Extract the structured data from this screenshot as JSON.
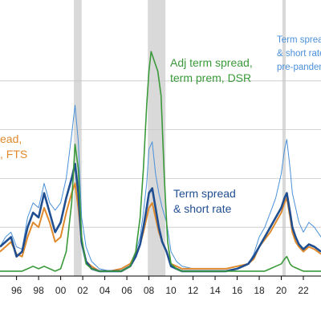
{
  "chart_data": {
    "type": "line",
    "title": "",
    "xlabel": "",
    "ylabel": "",
    "xlim": [
      1994.5,
      2023.6
    ],
    "ylim": [
      0,
      1.0
    ],
    "grid": "horizontal",
    "x_tick_labels": [
      {
        "x": 1996,
        "label": "96"
      },
      {
        "x": 1998,
        "label": "98"
      },
      {
        "x": 2000,
        "label": "00"
      },
      {
        "x": 2002,
        "label": "02"
      },
      {
        "x": 2004,
        "label": "04"
      },
      {
        "x": 2006,
        "label": "06"
      },
      {
        "x": 2008,
        "label": "08"
      },
      {
        "x": 2010,
        "label": "10"
      },
      {
        "x": 2012,
        "label": "12"
      },
      {
        "x": 2014,
        "label": "14"
      },
      {
        "x": 2016,
        "label": "16"
      },
      {
        "x": 2018,
        "label": "18"
      },
      {
        "x": 2020,
        "label": "20"
      },
      {
        "x": 2022,
        "label": "22"
      }
    ],
    "recessions": [
      [
        2001.2,
        2001.9
      ],
      [
        2007.9,
        2009.5
      ],
      [
        2020.1,
        2020.4
      ]
    ],
    "series": [
      {
        "color": "#4a90d9",
        "x": [
          1994.5,
          1995.0,
          1995.5,
          1996.0,
          1996.5,
          1997.0,
          1997.5,
          1998.0,
          1998.5,
          1999.0,
          1999.5,
          2000.0,
          2000.5,
          2001.0,
          2001.3,
          2001.6,
          2001.9,
          2002.3,
          2002.8,
          2003.5,
          2004.5,
          2005.5,
          2006.3,
          2006.8,
          2007.2,
          2007.5,
          2007.8,
          2008.0,
          2008.3,
          2008.6,
          2008.9,
          2009.2,
          2009.6,
          2010.0,
          2010.5,
          2011.0,
          2012.0,
          2013.0,
          2014.0,
          2015.0,
          2016.0,
          2017.0,
          2017.5,
          2018.0,
          2018.5,
          2019.0,
          2019.5,
          2020.0,
          2020.3,
          2020.5,
          2020.8,
          2021.0,
          2021.3,
          2021.6,
          2022.0,
          2022.5,
          2023.0,
          2023.6
        ],
        "values": [
          0.12,
          0.16,
          0.18,
          0.12,
          0.11,
          0.24,
          0.3,
          0.28,
          0.38,
          0.3,
          0.27,
          0.3,
          0.4,
          0.58,
          0.7,
          0.55,
          0.24,
          0.12,
          0.06,
          0.03,
          0.02,
          0.03,
          0.05,
          0.1,
          0.16,
          0.26,
          0.38,
          0.52,
          0.55,
          0.42,
          0.34,
          0.28,
          0.22,
          0.1,
          0.06,
          0.04,
          0.03,
          0.03,
          0.03,
          0.03,
          0.04,
          0.05,
          0.09,
          0.16,
          0.2,
          0.26,
          0.32,
          0.42,
          0.52,
          0.56,
          0.44,
          0.34,
          0.28,
          0.22,
          0.18,
          0.22,
          0.2,
          0.16
        ]
      },
      {
        "color": "#e08a2e",
        "x": [
          1994.5,
          1995.0,
          1995.5,
          1996.0,
          1996.5,
          1997.0,
          1997.5,
          1998.0,
          1998.5,
          1999.0,
          1999.5,
          2000.0,
          2000.5,
          2001.0,
          2001.3,
          2001.6,
          2001.9,
          2002.3,
          2002.8,
          2003.5,
          2004.5,
          2005.5,
          2006.3,
          2006.8,
          2007.2,
          2007.5,
          2007.8,
          2008.0,
          2008.3,
          2008.6,
          2008.9,
          2009.2,
          2009.6,
          2010.0,
          2010.5,
          2011.0,
          2012.0,
          2013.0,
          2014.0,
          2015.0,
          2016.0,
          2017.0,
          2017.5,
          2018.0,
          2018.5,
          2019.0,
          2019.5,
          2020.0,
          2020.3,
          2020.5,
          2020.8,
          2021.0,
          2021.3,
          2021.6,
          2022.0,
          2022.5,
          2023.0,
          2023.6
        ],
        "values": [
          0.1,
          0.12,
          0.14,
          0.09,
          0.08,
          0.16,
          0.22,
          0.2,
          0.28,
          0.22,
          0.14,
          0.16,
          0.26,
          0.34,
          0.38,
          0.28,
          0.14,
          0.06,
          0.04,
          0.02,
          0.02,
          0.03,
          0.05,
          0.09,
          0.13,
          0.18,
          0.24,
          0.28,
          0.3,
          0.24,
          0.18,
          0.14,
          0.1,
          0.05,
          0.04,
          0.03,
          0.03,
          0.03,
          0.03,
          0.03,
          0.04,
          0.05,
          0.07,
          0.12,
          0.15,
          0.18,
          0.22,
          0.26,
          0.3,
          0.32,
          0.24,
          0.18,
          0.14,
          0.12,
          0.1,
          0.12,
          0.11,
          0.09
        ]
      },
      {
        "color": "#1f4e91",
        "x": [
          1994.5,
          1995.0,
          1995.5,
          1996.0,
          1996.5,
          1997.0,
          1997.5,
          1998.0,
          1998.5,
          1999.0,
          1999.5,
          2000.0,
          2000.5,
          2001.0,
          2001.3,
          2001.6,
          2001.9,
          2002.3,
          2002.8,
          2003.5,
          2004.5,
          2005.5,
          2006.3,
          2006.8,
          2007.2,
          2007.5,
          2007.8,
          2008.0,
          2008.3,
          2008.6,
          2008.9,
          2009.2,
          2009.6,
          2010.0,
          2010.5,
          2011.0,
          2012.0,
          2013.0,
          2014.0,
          2015.0,
          2016.0,
          2017.0,
          2017.5,
          2018.0,
          2018.5,
          2019.0,
          2019.5,
          2020.0,
          2020.3,
          2020.5,
          2020.8,
          2021.0,
          2021.3,
          2021.6,
          2022.0,
          2022.5,
          2023.0,
          2023.6
        ],
        "values": [
          0.12,
          0.14,
          0.16,
          0.08,
          0.1,
          0.2,
          0.26,
          0.24,
          0.34,
          0.26,
          0.18,
          0.22,
          0.32,
          0.4,
          0.46,
          0.34,
          0.14,
          0.06,
          0.03,
          0.02,
          0.02,
          0.02,
          0.04,
          0.08,
          0.13,
          0.2,
          0.28,
          0.34,
          0.36,
          0.28,
          0.2,
          0.14,
          0.1,
          0.04,
          0.03,
          0.02,
          0.02,
          0.02,
          0.02,
          0.02,
          0.03,
          0.05,
          0.08,
          0.12,
          0.16,
          0.2,
          0.24,
          0.28,
          0.32,
          0.34,
          0.26,
          0.2,
          0.16,
          0.13,
          0.11,
          0.13,
          0.12,
          0.1
        ]
      },
      {
        "color": "#3a9a3a",
        "x": [
          1994.5,
          1995.0,
          1995.5,
          1996.0,
          1996.5,
          1997.0,
          1997.5,
          1998.0,
          1998.5,
          1999.0,
          1999.5,
          2000.0,
          2000.5,
          2001.0,
          2001.3,
          2001.6,
          2001.9,
          2002.3,
          2002.8,
          2003.5,
          2004.5,
          2005.5,
          2006.3,
          2006.8,
          2007.2,
          2007.5,
          2007.8,
          2008.0,
          2008.2,
          2008.5,
          2008.8,
          2009.1,
          2009.4,
          2009.7,
          2010.0,
          2010.5,
          2011.0,
          2012.0,
          2013.0,
          2014.0,
          2015.0,
          2016.0,
          2017.0,
          2018.0,
          2018.5,
          2019.0,
          2019.5,
          2020.0,
          2020.3,
          2020.5,
          2020.8,
          2021.0,
          2021.5,
          2022.0,
          2022.5,
          2023.0,
          2023.6
        ],
        "values": [
          0.02,
          0.02,
          0.02,
          0.02,
          0.02,
          0.03,
          0.04,
          0.03,
          0.04,
          0.03,
          0.02,
          0.03,
          0.1,
          0.3,
          0.54,
          0.44,
          0.16,
          0.05,
          0.03,
          0.02,
          0.02,
          0.02,
          0.04,
          0.1,
          0.24,
          0.44,
          0.7,
          0.84,
          0.92,
          0.88,
          0.84,
          0.74,
          0.4,
          0.14,
          0.05,
          0.03,
          0.02,
          0.02,
          0.02,
          0.02,
          0.02,
          0.02,
          0.02,
          0.02,
          0.02,
          0.03,
          0.04,
          0.05,
          0.07,
          0.08,
          0.05,
          0.04,
          0.03,
          0.02,
          0.02,
          0.02,
          0.02
        ]
      }
    ]
  },
  "annotations": {
    "adj_line1": "Adj term spread,",
    "adj_line2": "term prem, DSR",
    "ts_line1": "Term spread",
    "ts_line2": "& short rate",
    "orange_line1": "ead,",
    "orange_line2": ", FTS",
    "pre_line1": "Term spread",
    "pre_line2": "& short rate,",
    "pre_line3": "pre-pandemic"
  },
  "colors": {
    "navy": "#1f4e91",
    "light_blue": "#4a90d9",
    "orange": "#e08a2e",
    "green": "#3a9a3a",
    "recession": "#d9d9d9"
  }
}
